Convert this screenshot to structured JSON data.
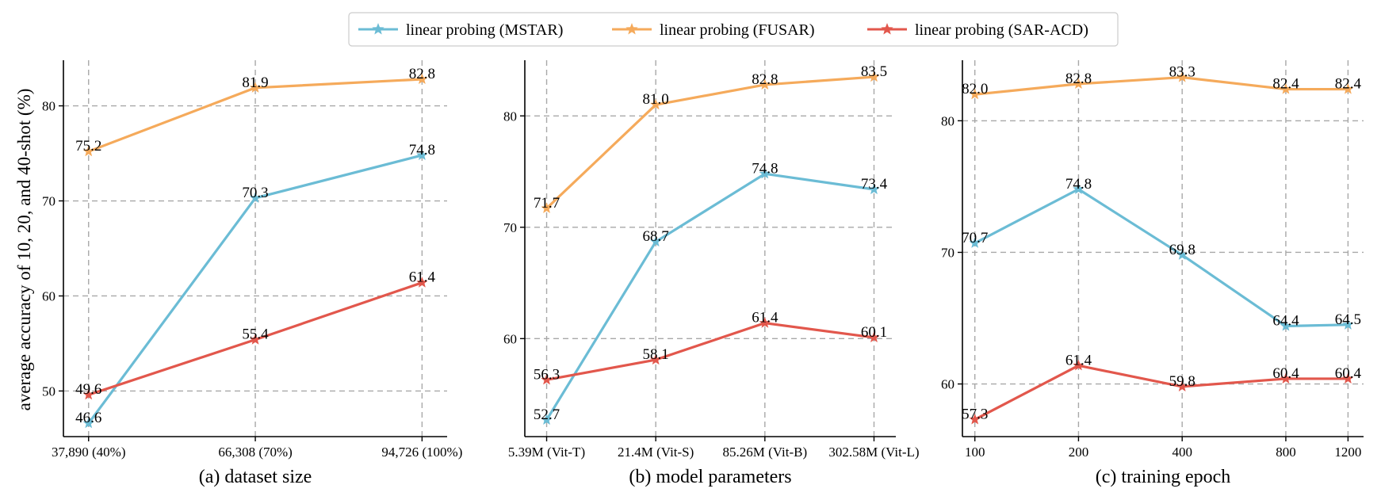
{
  "colors": {
    "mstar": "#6bbcd5",
    "fusar": "#f5aa5b",
    "saracd": "#e2574c",
    "grid": "#a8a8a8",
    "axis": "#000000"
  },
  "ylabel": "average accuracy of 10, 20, and 40-shot (%)",
  "legend": [
    {
      "key": "mstar",
      "label": "linear probing (MSTAR)"
    },
    {
      "key": "fusar",
      "label": "linear probing (FUSAR)"
    },
    {
      "key": "saracd",
      "label": "linear probing (SAR-ACD)"
    }
  ],
  "chart_data": [
    {
      "type": "line",
      "title": "(a) dataset size",
      "categories": [
        "37,890 (40%)",
        "66,308 (70%)",
        "94,726 (100%)"
      ],
      "x": [
        37890,
        66308,
        94726
      ],
      "xlim": [
        33600,
        99000
      ],
      "ylim": [
        45.2,
        84.8
      ],
      "yticks": [
        50,
        60,
        70,
        80
      ],
      "series": [
        {
          "key": "mstar",
          "name": "linear probing (MSTAR)",
          "values": [
            46.6,
            70.3,
            74.8
          ]
        },
        {
          "key": "fusar",
          "name": "linear probing (FUSAR)",
          "values": [
            75.2,
            81.9,
            82.8
          ]
        },
        {
          "key": "saracd",
          "name": "linear probing (SAR-ACD)",
          "values": [
            49.6,
            55.4,
            61.4
          ]
        }
      ]
    },
    {
      "type": "line",
      "title": "(b) model parameters",
      "categories": [
        "5.39M (Vit-T)",
        "21.4M (Vit-S)",
        "85.26M (Vit-B)",
        "302.58M (Vit-L)"
      ],
      "x": [
        0,
        1,
        2,
        3
      ],
      "xlim": [
        -0.2,
        3.2
      ],
      "ylim": [
        51.2,
        85.0
      ],
      "yticks": [
        60,
        70,
        80
      ],
      "series": [
        {
          "key": "mstar",
          "name": "linear probing (MSTAR)",
          "values": [
            52.7,
            68.7,
            74.8,
            73.4
          ]
        },
        {
          "key": "fusar",
          "name": "linear probing (FUSAR)",
          "values": [
            71.7,
            81.0,
            82.8,
            83.5
          ]
        },
        {
          "key": "saracd",
          "name": "linear probing (SAR-ACD)",
          "values": [
            56.3,
            58.1,
            61.4,
            60.1
          ]
        }
      ]
    },
    {
      "type": "line",
      "title": "(c) training epoch",
      "categories": [
        "100",
        "200",
        "400",
        "800",
        "1200"
      ],
      "x": [
        0,
        1,
        2,
        3,
        3.6
      ],
      "xlim": [
        -0.12,
        3.75
      ],
      "ylim": [
        56.0,
        84.6
      ],
      "yticks": [
        60,
        70,
        80
      ],
      "series": [
        {
          "key": "mstar",
          "name": "linear probing (MSTAR)",
          "values": [
            70.7,
            74.8,
            69.8,
            64.4,
            64.5
          ]
        },
        {
          "key": "fusar",
          "name": "linear probing (FUSAR)",
          "values": [
            82.0,
            82.8,
            83.3,
            82.4,
            82.4
          ]
        },
        {
          "key": "saracd",
          "name": "linear probing (SAR-ACD)",
          "values": [
            57.3,
            61.4,
            59.8,
            60.4,
            60.4
          ]
        }
      ]
    }
  ]
}
